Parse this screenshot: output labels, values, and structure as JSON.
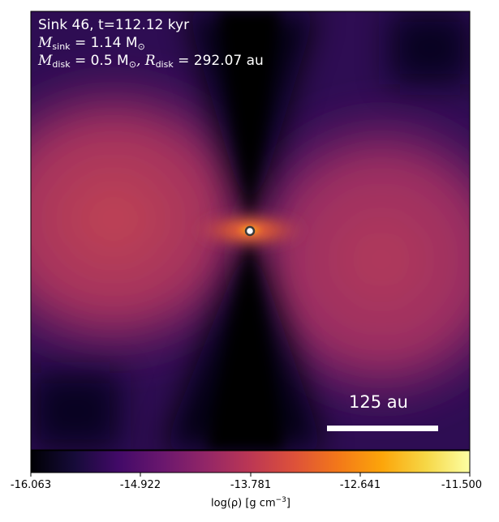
{
  "annotation": {
    "line1": "Sink 46, t=112.12 kyr",
    "m_sink_symbol": "M",
    "m_sink_sub": "sink",
    "m_sink_value": " = 1.14 M",
    "m_sink_unit_sub": "⊙",
    "m_disk_symbol": "M",
    "m_disk_sub": "disk",
    "m_disk_value": " = 0.5 M",
    "m_disk_unit_sub": "⊙",
    "r_disk_symbol": ", R",
    "r_disk_sub": "disk",
    "r_disk_value": " = 292.07 au"
  },
  "scale_bar": {
    "label": "125 au"
  },
  "colorbar": {
    "colormap": "inferno",
    "ticks": [
      "-16.063",
      "-14.922",
      "-13.781",
      "-12.641",
      "-11.500"
    ],
    "label_main": "log(ρ) [g cm",
    "label_exp": "−3",
    "label_end": "]"
  }
}
